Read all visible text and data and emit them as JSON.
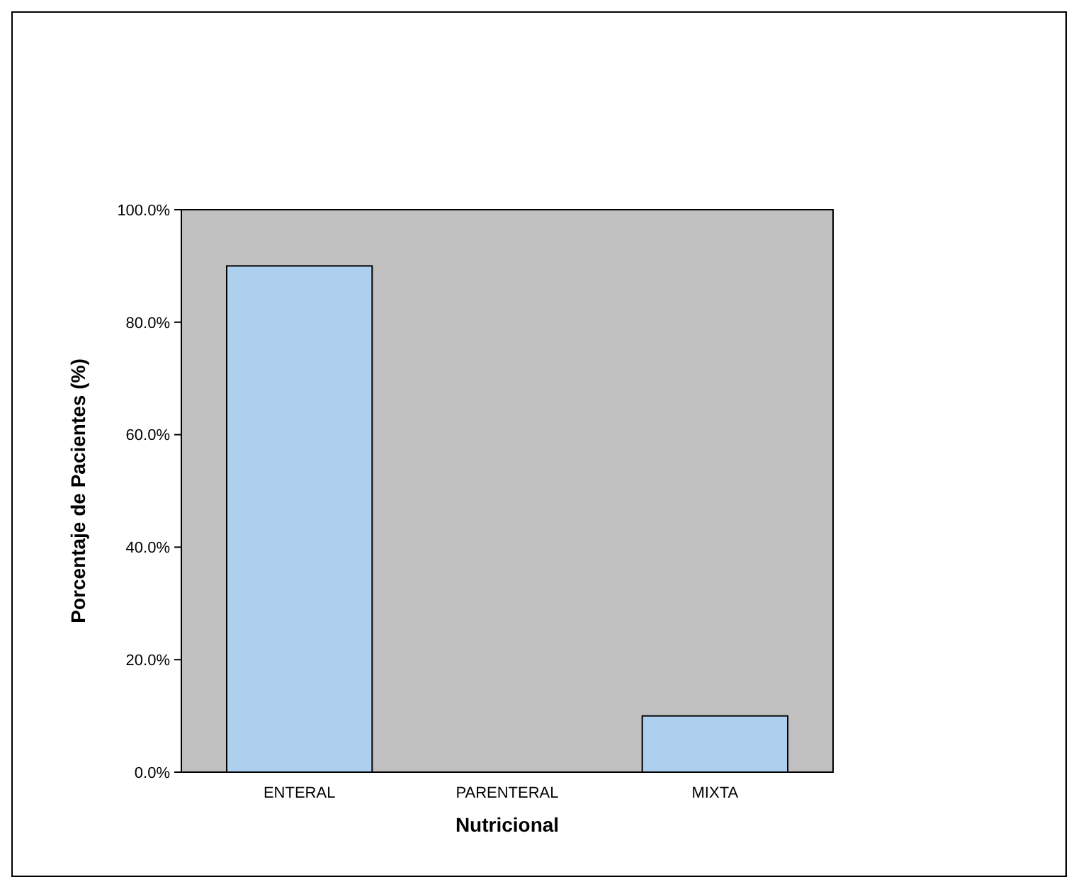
{
  "chart_data": {
    "type": "bar",
    "xlabel": "Nutricional",
    "ylabel": "Porcentaje de Pacientes (%)",
    "categories": [
      "ENTERAL",
      "PARENTERAL",
      "MIXTA"
    ],
    "values": [
      90,
      0,
      10
    ],
    "color": "#add0ee",
    "ylim": [
      0,
      100
    ],
    "yticks": [
      {
        "value": 0,
        "label": "0.0%"
      },
      {
        "value": 20,
        "label": "20.0%"
      },
      {
        "value": 40,
        "label": "40.0%"
      },
      {
        "value": 60,
        "label": "60.0%"
      },
      {
        "value": 80,
        "label": "80.0%"
      },
      {
        "value": 100,
        "label": "100.0%"
      }
    ],
    "grid": false
  }
}
